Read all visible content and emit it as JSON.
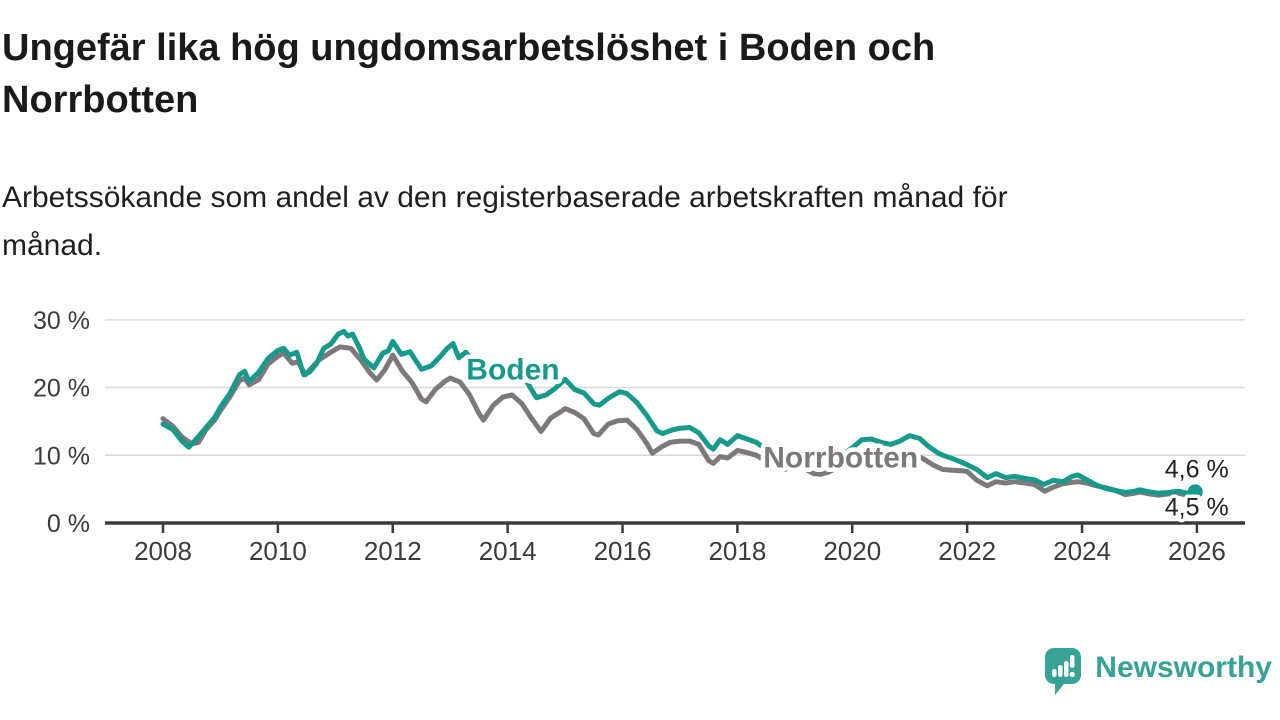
{
  "header": {
    "title_lines": [
      "Ungefär lika hög ungdomsarbetslöshet i Boden och",
      "Norrbotten"
    ],
    "subtitle_lines": [
      "Arbetssökande som andel av den registerbaserade arbetskraften månad för",
      "månad."
    ]
  },
  "chart_data": {
    "type": "line",
    "title": "Ungefär lika hög ungdomsarbetslöshet i Boden och Norrbotten",
    "subtitle": "Arbetssökande som andel av den registerbaserade arbetskraften månad för månad.",
    "unit": "%",
    "grid_on": true,
    "legend_position": "inline-labels",
    "x_axis": {
      "min": 2007.8,
      "max": 2026.4,
      "tick_years": [
        2008,
        2010,
        2012,
        2014,
        2016,
        2018,
        2020,
        2022,
        2024,
        2026
      ],
      "tick_labels": [
        "2008",
        "2010",
        "2012",
        "2014",
        "2016",
        "2018",
        "2020",
        "2022",
        "2024",
        "2026"
      ]
    },
    "y_axis": {
      "min": 0,
      "max": 31,
      "gridline_values": [
        30,
        20,
        10
      ],
      "ticks": [
        {
          "value": 30,
          "label": "30 %"
        },
        {
          "value": 20,
          "label": "20 %"
        },
        {
          "value": 10,
          "label": "10 %"
        },
        {
          "value": 0,
          "label": "0 %"
        }
      ]
    },
    "colors": {
      "boden": "#169a8c",
      "norrbotten": "#7c787c",
      "gridline": "#d9d9d9",
      "axis": "#3b3b3b",
      "tick_text": "#3c3c3c",
      "annotation_text": "#222222"
    },
    "series": [
      {
        "name": "Norrbotten",
        "color": "#7c787c",
        "stroke_width": 5,
        "end_dot": true,
        "dot_radius": 6,
        "end_value_label": "4,5 %",
        "points": [
          [
            2008.0,
            15.4
          ],
          [
            2008.17,
            14.3
          ],
          [
            2008.33,
            12.7
          ],
          [
            2008.5,
            11.7
          ],
          [
            2008.62,
            11.9
          ],
          [
            2008.75,
            13.8
          ],
          [
            2008.9,
            15.2
          ],
          [
            2009.0,
            16.6
          ],
          [
            2009.17,
            18.7
          ],
          [
            2009.33,
            21.0
          ],
          [
            2009.42,
            21.4
          ],
          [
            2009.5,
            20.4
          ],
          [
            2009.67,
            21.2
          ],
          [
            2009.83,
            23.5
          ],
          [
            2010.0,
            24.6
          ],
          [
            2010.1,
            25.1
          ],
          [
            2010.25,
            23.6
          ],
          [
            2010.35,
            23.8
          ],
          [
            2010.48,
            21.9
          ],
          [
            2010.6,
            23.0
          ],
          [
            2010.72,
            24.1
          ],
          [
            2010.9,
            25.1
          ],
          [
            2011.08,
            26.0
          ],
          [
            2011.27,
            25.8
          ],
          [
            2011.45,
            24.0
          ],
          [
            2011.6,
            22.2
          ],
          [
            2011.72,
            21.1
          ],
          [
            2011.86,
            22.6
          ],
          [
            2012.0,
            24.8
          ],
          [
            2012.17,
            22.4
          ],
          [
            2012.33,
            20.8
          ],
          [
            2012.5,
            18.3
          ],
          [
            2012.58,
            17.9
          ],
          [
            2012.75,
            19.8
          ],
          [
            2012.92,
            21.0
          ],
          [
            2013.0,
            21.4
          ],
          [
            2013.17,
            20.8
          ],
          [
            2013.33,
            19.0
          ],
          [
            2013.5,
            16.2
          ],
          [
            2013.58,
            15.2
          ],
          [
            2013.75,
            17.4
          ],
          [
            2013.92,
            18.6
          ],
          [
            2014.08,
            18.9
          ],
          [
            2014.25,
            17.6
          ],
          [
            2014.42,
            15.4
          ],
          [
            2014.58,
            13.5
          ],
          [
            2014.75,
            15.5
          ],
          [
            2014.92,
            16.4
          ],
          [
            2015.0,
            16.9
          ],
          [
            2015.17,
            16.3
          ],
          [
            2015.33,
            15.4
          ],
          [
            2015.5,
            13.2
          ],
          [
            2015.58,
            13.0
          ],
          [
            2015.75,
            14.6
          ],
          [
            2015.92,
            15.1
          ],
          [
            2016.08,
            15.2
          ],
          [
            2016.25,
            13.8
          ],
          [
            2016.42,
            11.8
          ],
          [
            2016.52,
            10.3
          ],
          [
            2016.67,
            11.2
          ],
          [
            2016.83,
            11.9
          ],
          [
            2017.0,
            12.1
          ],
          [
            2017.17,
            12.1
          ],
          [
            2017.33,
            11.6
          ],
          [
            2017.5,
            9.2
          ],
          [
            2017.58,
            8.8
          ],
          [
            2017.7,
            9.8
          ],
          [
            2017.83,
            9.6
          ],
          [
            2018.0,
            10.7
          ],
          [
            2018.17,
            10.4
          ],
          [
            2018.33,
            10.0
          ],
          [
            2018.5,
            9.2
          ],
          [
            2018.67,
            8.5
          ],
          [
            2018.83,
            7.9
          ],
          [
            2019.0,
            9.0
          ],
          [
            2019.17,
            8.0
          ],
          [
            2019.33,
            7.3
          ],
          [
            2019.45,
            7.2
          ],
          [
            2019.58,
            7.5
          ],
          [
            2019.75,
            8.2
          ],
          [
            2019.92,
            8.8
          ],
          [
            2020.08,
            9.6
          ],
          [
            2020.25,
            10.4
          ],
          [
            2020.42,
            10.8
          ],
          [
            2020.58,
            10.4
          ],
          [
            2020.75,
            10.0
          ],
          [
            2020.92,
            10.3
          ],
          [
            2021.08,
            10.2
          ],
          [
            2021.25,
            9.4
          ],
          [
            2021.42,
            8.5
          ],
          [
            2021.58,
            7.9
          ],
          [
            2021.75,
            7.8
          ],
          [
            2021.92,
            7.7
          ],
          [
            2022.0,
            7.6
          ],
          [
            2022.17,
            6.3
          ],
          [
            2022.35,
            5.5
          ],
          [
            2022.5,
            6.1
          ],
          [
            2022.67,
            5.9
          ],
          [
            2022.83,
            6.1
          ],
          [
            2023.0,
            5.9
          ],
          [
            2023.17,
            5.7
          ],
          [
            2023.35,
            4.7
          ],
          [
            2023.5,
            5.3
          ],
          [
            2023.67,
            5.8
          ],
          [
            2023.92,
            6.1
          ],
          [
            2024.08,
            5.9
          ],
          [
            2024.25,
            5.5
          ],
          [
            2024.42,
            5.2
          ],
          [
            2024.58,
            4.8
          ],
          [
            2024.75,
            4.2
          ],
          [
            2024.92,
            4.4
          ],
          [
            2025.0,
            4.6
          ],
          [
            2025.17,
            4.3
          ],
          [
            2025.33,
            4.1
          ],
          [
            2025.5,
            4.3
          ],
          [
            2025.67,
            4.4
          ],
          [
            2025.83,
            4.1
          ],
          [
            2025.97,
            4.5
          ]
        ]
      },
      {
        "name": "Boden",
        "color": "#169a8c",
        "stroke_width": 5,
        "end_dot": true,
        "dot_radius": 7.5,
        "end_value_label": "4,6 %",
        "points": [
          [
            2008.0,
            14.6
          ],
          [
            2008.17,
            13.8
          ],
          [
            2008.33,
            12.1
          ],
          [
            2008.45,
            11.2
          ],
          [
            2008.6,
            12.6
          ],
          [
            2008.75,
            14.1
          ],
          [
            2008.9,
            15.6
          ],
          [
            2009.0,
            17.1
          ],
          [
            2009.17,
            19.2
          ],
          [
            2009.33,
            21.9
          ],
          [
            2009.42,
            22.4
          ],
          [
            2009.5,
            20.9
          ],
          [
            2009.67,
            22.3
          ],
          [
            2009.83,
            24.3
          ],
          [
            2010.0,
            25.5
          ],
          [
            2010.1,
            25.8
          ],
          [
            2010.2,
            24.8
          ],
          [
            2010.33,
            25.2
          ],
          [
            2010.45,
            21.9
          ],
          [
            2010.55,
            22.3
          ],
          [
            2010.67,
            23.5
          ],
          [
            2010.8,
            25.8
          ],
          [
            2010.92,
            26.4
          ],
          [
            2011.05,
            27.9
          ],
          [
            2011.15,
            28.3
          ],
          [
            2011.22,
            27.6
          ],
          [
            2011.3,
            27.9
          ],
          [
            2011.42,
            25.9
          ],
          [
            2011.5,
            24.2
          ],
          [
            2011.67,
            22.9
          ],
          [
            2011.83,
            25.1
          ],
          [
            2011.92,
            25.4
          ],
          [
            2012.0,
            26.8
          ],
          [
            2012.15,
            24.9
          ],
          [
            2012.3,
            25.3
          ],
          [
            2012.5,
            22.7
          ],
          [
            2012.67,
            23.2
          ],
          [
            2012.83,
            24.6
          ],
          [
            2012.95,
            25.8
          ],
          [
            2013.05,
            26.5
          ],
          [
            2013.15,
            24.4
          ],
          [
            2013.27,
            25.2
          ],
          [
            2013.4,
            23.9
          ],
          [
            2013.55,
            22.2
          ],
          [
            2013.67,
            21.9
          ],
          [
            2013.83,
            22.6
          ],
          [
            2014.0,
            22.9
          ],
          [
            2014.17,
            21.9
          ],
          [
            2014.33,
            20.9
          ],
          [
            2014.5,
            18.5
          ],
          [
            2014.67,
            18.9
          ],
          [
            2014.83,
            19.9
          ],
          [
            2015.0,
            21.2
          ],
          [
            2015.17,
            19.7
          ],
          [
            2015.33,
            19.2
          ],
          [
            2015.5,
            17.6
          ],
          [
            2015.6,
            17.4
          ],
          [
            2015.75,
            18.4
          ],
          [
            2015.95,
            19.4
          ],
          [
            2016.08,
            19.1
          ],
          [
            2016.25,
            17.8
          ],
          [
            2016.42,
            15.9
          ],
          [
            2016.6,
            13.6
          ],
          [
            2016.7,
            13.2
          ],
          [
            2016.85,
            13.7
          ],
          [
            2017.0,
            14.0
          ],
          [
            2017.17,
            14.1
          ],
          [
            2017.33,
            13.3
          ],
          [
            2017.5,
            11.4
          ],
          [
            2017.58,
            10.9
          ],
          [
            2017.7,
            12.3
          ],
          [
            2017.83,
            11.6
          ],
          [
            2018.0,
            12.9
          ],
          [
            2018.17,
            12.4
          ],
          [
            2018.33,
            11.9
          ],
          [
            2018.5,
            10.9
          ],
          [
            2018.67,
            10.0
          ],
          [
            2018.83,
            9.8
          ],
          [
            2019.0,
            10.6
          ],
          [
            2019.17,
            9.8
          ],
          [
            2019.33,
            9.2
          ],
          [
            2019.5,
            8.9
          ],
          [
            2019.67,
            9.3
          ],
          [
            2019.83,
            10.1
          ],
          [
            2020.0,
            11.1
          ],
          [
            2020.17,
            12.3
          ],
          [
            2020.33,
            12.4
          ],
          [
            2020.5,
            11.9
          ],
          [
            2020.67,
            11.6
          ],
          [
            2020.83,
            12.1
          ],
          [
            2021.0,
            12.9
          ],
          [
            2021.17,
            12.5
          ],
          [
            2021.33,
            11.3
          ],
          [
            2021.5,
            10.3
          ],
          [
            2021.58,
            10.0
          ],
          [
            2021.75,
            9.5
          ],
          [
            2021.92,
            8.9
          ],
          [
            2022.0,
            8.6
          ],
          [
            2022.17,
            7.9
          ],
          [
            2022.35,
            6.7
          ],
          [
            2022.5,
            7.3
          ],
          [
            2022.67,
            6.7
          ],
          [
            2022.83,
            6.9
          ],
          [
            2023.0,
            6.6
          ],
          [
            2023.17,
            6.4
          ],
          [
            2023.33,
            5.7
          ],
          [
            2023.5,
            6.3
          ],
          [
            2023.67,
            6.1
          ],
          [
            2023.83,
            6.9
          ],
          [
            2023.93,
            7.1
          ],
          [
            2024.08,
            6.4
          ],
          [
            2024.25,
            5.6
          ],
          [
            2024.42,
            5.1
          ],
          [
            2024.58,
            4.8
          ],
          [
            2024.75,
            4.5
          ],
          [
            2024.92,
            4.7
          ],
          [
            2025.0,
            4.9
          ],
          [
            2025.17,
            4.6
          ],
          [
            2025.33,
            4.4
          ],
          [
            2025.5,
            4.5
          ],
          [
            2025.67,
            4.7
          ],
          [
            2025.83,
            4.4
          ],
          [
            2025.97,
            4.6
          ]
        ]
      }
    ],
    "annotations": [
      {
        "text": "Boden",
        "year": 2013.28,
        "pct": 21.2,
        "color": "#169a8c",
        "bold": true,
        "size": 30,
        "anchor": "start",
        "halo": 9
      },
      {
        "text": "Norrbotten",
        "year": 2018.45,
        "pct": 8.2,
        "color": "#7c787c",
        "bold": true,
        "size": 30,
        "anchor": "start",
        "halo": 9
      },
      {
        "text": "4,6 %",
        "year": 2025.44,
        "pct": 6.7,
        "color": "#222222",
        "bold": false,
        "size": 25,
        "anchor": "start",
        "halo": 7
      },
      {
        "text": "4,5 %",
        "year": 2025.44,
        "pct": 1.1,
        "color": "#222222",
        "bold": false,
        "size": 25,
        "anchor": "start",
        "halo": 7
      }
    ]
  },
  "footer": {
    "logo_text": "Newsworthy",
    "logo_color": "#38a296"
  }
}
